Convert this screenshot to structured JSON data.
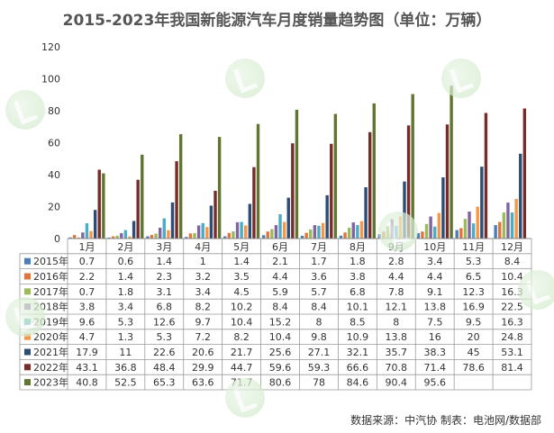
{
  "title": "2015-2023年我国新能源汽车月度销量趋势图（单位：万辆）",
  "source": "数据来源：中汽协   制表：电池网/数据部",
  "colors": {
    "2015年": "#4a7ebb",
    "2016年": "#e2733a",
    "2017年": "#9bbb59",
    "2018年": "#8064a2",
    "2019年": "#4bacc6",
    "2020年": "#f79646",
    "2021年": "#2c4d75",
    "2022年": "#772c2a",
    "2023年": "#5f7530"
  },
  "chart_data": {
    "type": "bar",
    "title": "2015-2023年我国新能源汽车月度销量趋势图（单位：万辆）",
    "categories": [
      "1月",
      "2月",
      "3月",
      "4月",
      "5月",
      "6月",
      "7月",
      "8月",
      "9月",
      "10月",
      "11月",
      "12月"
    ],
    "ylim": [
      0,
      120
    ],
    "yticks": [
      0,
      20,
      40,
      60,
      80,
      100,
      120
    ],
    "grid": false,
    "legend": "table-below",
    "series": [
      {
        "name": "2015年",
        "values": [
          0.7,
          0.6,
          1.4,
          1.0,
          1.4,
          2.1,
          1.7,
          1.8,
          2.8,
          3.4,
          5.3,
          8.4
        ]
      },
      {
        "name": "2016年",
        "values": [
          2.2,
          1.4,
          2.3,
          3.2,
          3.5,
          4.4,
          3.6,
          3.8,
          4.4,
          4.4,
          6.5,
          10.4
        ]
      },
      {
        "name": "2017年",
        "values": [
          0.7,
          1.8,
          3.1,
          3.4,
          4.5,
          5.9,
          5.7,
          6.8,
          7.8,
          9.1,
          12.3,
          16.3
        ]
      },
      {
        "name": "2018年",
        "values": [
          3.8,
          3.4,
          6.8,
          8.2,
          10.2,
          8.4,
          8.4,
          10.1,
          12.1,
          13.8,
          16.9,
          22.5
        ]
      },
      {
        "name": "2019年",
        "values": [
          9.6,
          5.3,
          12.6,
          9.7,
          10.4,
          15.2,
          8,
          8.5,
          8,
          7.5,
          9.5,
          16.3
        ]
      },
      {
        "name": "2020年",
        "values": [
          4.7,
          1.3,
          5.3,
          7.2,
          8.2,
          10.4,
          9.8,
          10.9,
          13.8,
          16,
          20,
          24.8
        ]
      },
      {
        "name": "2021年",
        "values": [
          17.9,
          11,
          22.6,
          20.6,
          21.7,
          25.6,
          27.1,
          32.1,
          35.7,
          38.3,
          45,
          53.1
        ]
      },
      {
        "name": "2022年",
        "values": [
          43.1,
          36.8,
          48.4,
          29.9,
          44.7,
          59.6,
          59.3,
          66.6,
          70.8,
          71.4,
          78.6,
          81.4
        ]
      },
      {
        "name": "2023年",
        "values": [
          40.8,
          52.5,
          65.3,
          63.6,
          71.7,
          80.6,
          78,
          84.6,
          90.4,
          95.6,
          null,
          null
        ]
      }
    ]
  }
}
